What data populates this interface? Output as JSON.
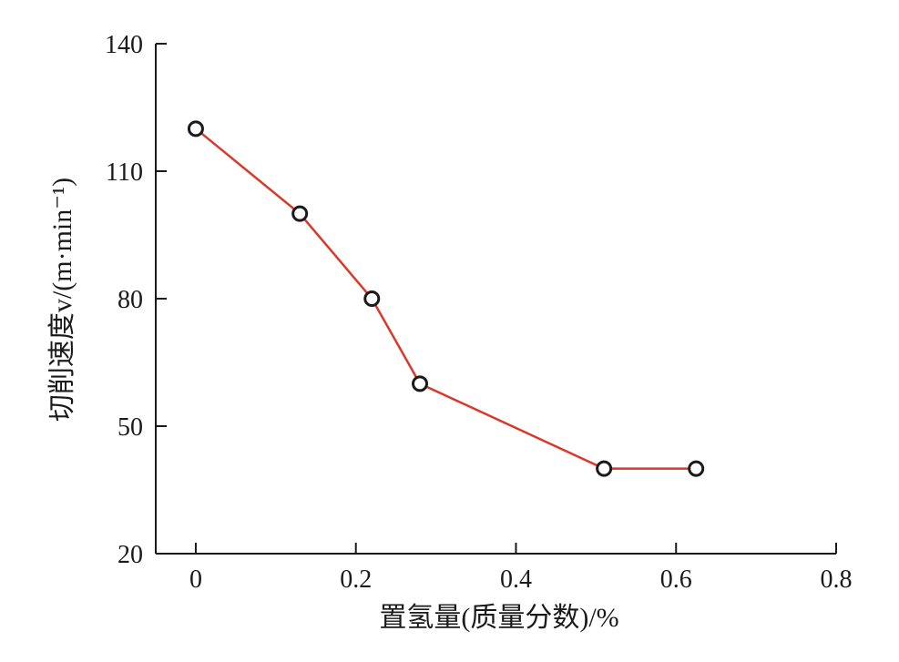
{
  "chart_data": {
    "type": "line",
    "title": "",
    "xlabel": "置氢量(质量分数)/%",
    "ylabel": "切削速度v/(m·min⁻¹)",
    "xlim": [
      -0.05,
      0.8
    ],
    "ylim": [
      20,
      140
    ],
    "xticks": [
      0,
      0.2,
      0.4,
      0.6,
      0.8
    ],
    "xtick_labels": [
      "0",
      "0.2",
      "0.4",
      "0.6",
      "0.8"
    ],
    "yticks": [
      20,
      50,
      80,
      110,
      140
    ],
    "ytick_labels": [
      "20",
      "50",
      "80",
      "110",
      "140"
    ],
    "grid": false,
    "legend": "none",
    "series": [
      {
        "x": [
          0,
          0.13,
          0.22,
          0.28,
          0.51,
          0.625
        ],
        "y": [
          120,
          100,
          80,
          60,
          40,
          40
        ],
        "line_color": "#d9382b",
        "marker": "open-circle",
        "marker_color": "#1a1a1a"
      }
    ]
  }
}
